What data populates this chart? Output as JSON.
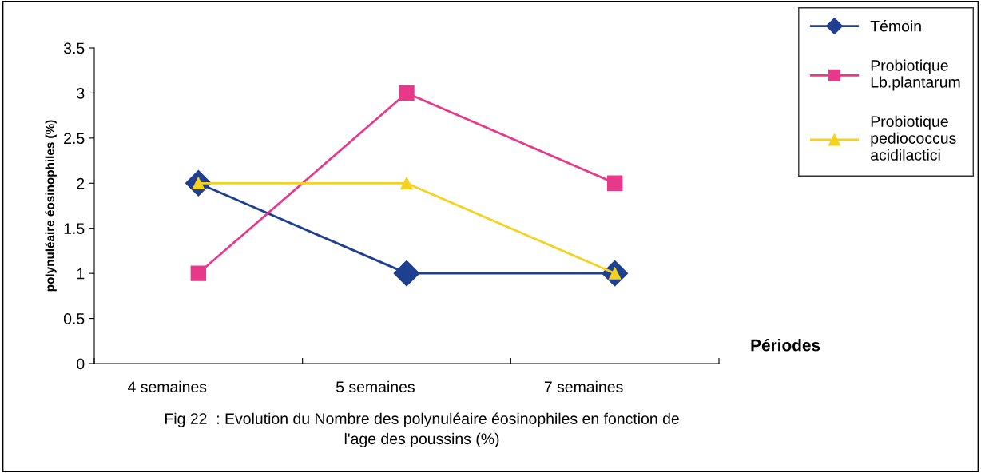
{
  "chart_data": {
    "type": "line",
    "categories": [
      "4 semaines",
      "5 semaines",
      "7 semaines"
    ],
    "series": [
      {
        "name": "Témoin",
        "color": "#1f3f8f",
        "marker": "diamond",
        "values": [
          2,
          1,
          1
        ]
      },
      {
        "name": "Probiotique\nLb.plantarum",
        "color": "#e8388a",
        "marker": "square",
        "values": [
          1,
          3,
          2
        ]
      },
      {
        "name": "Probiotique\npediococcus\nacidilactici",
        "color": "#f5d21f",
        "marker": "triangle",
        "values": [
          2,
          2,
          1
        ]
      }
    ],
    "xlabel": "Périodes",
    "ylabel": "polynuléaire éosinophiles (%)",
    "ylim": [
      0,
      3.5
    ],
    "yticks": [
      0,
      0.5,
      1,
      1.5,
      2,
      2.5,
      3,
      3.5
    ],
    "grid": false,
    "legend": "top right",
    "line_style": "solid",
    "annotations": [
      "Fig 22  : Evolution du Nombre des polynuléaire éosinophiles en fonction de\nl'age des poussins (%)"
    ]
  }
}
